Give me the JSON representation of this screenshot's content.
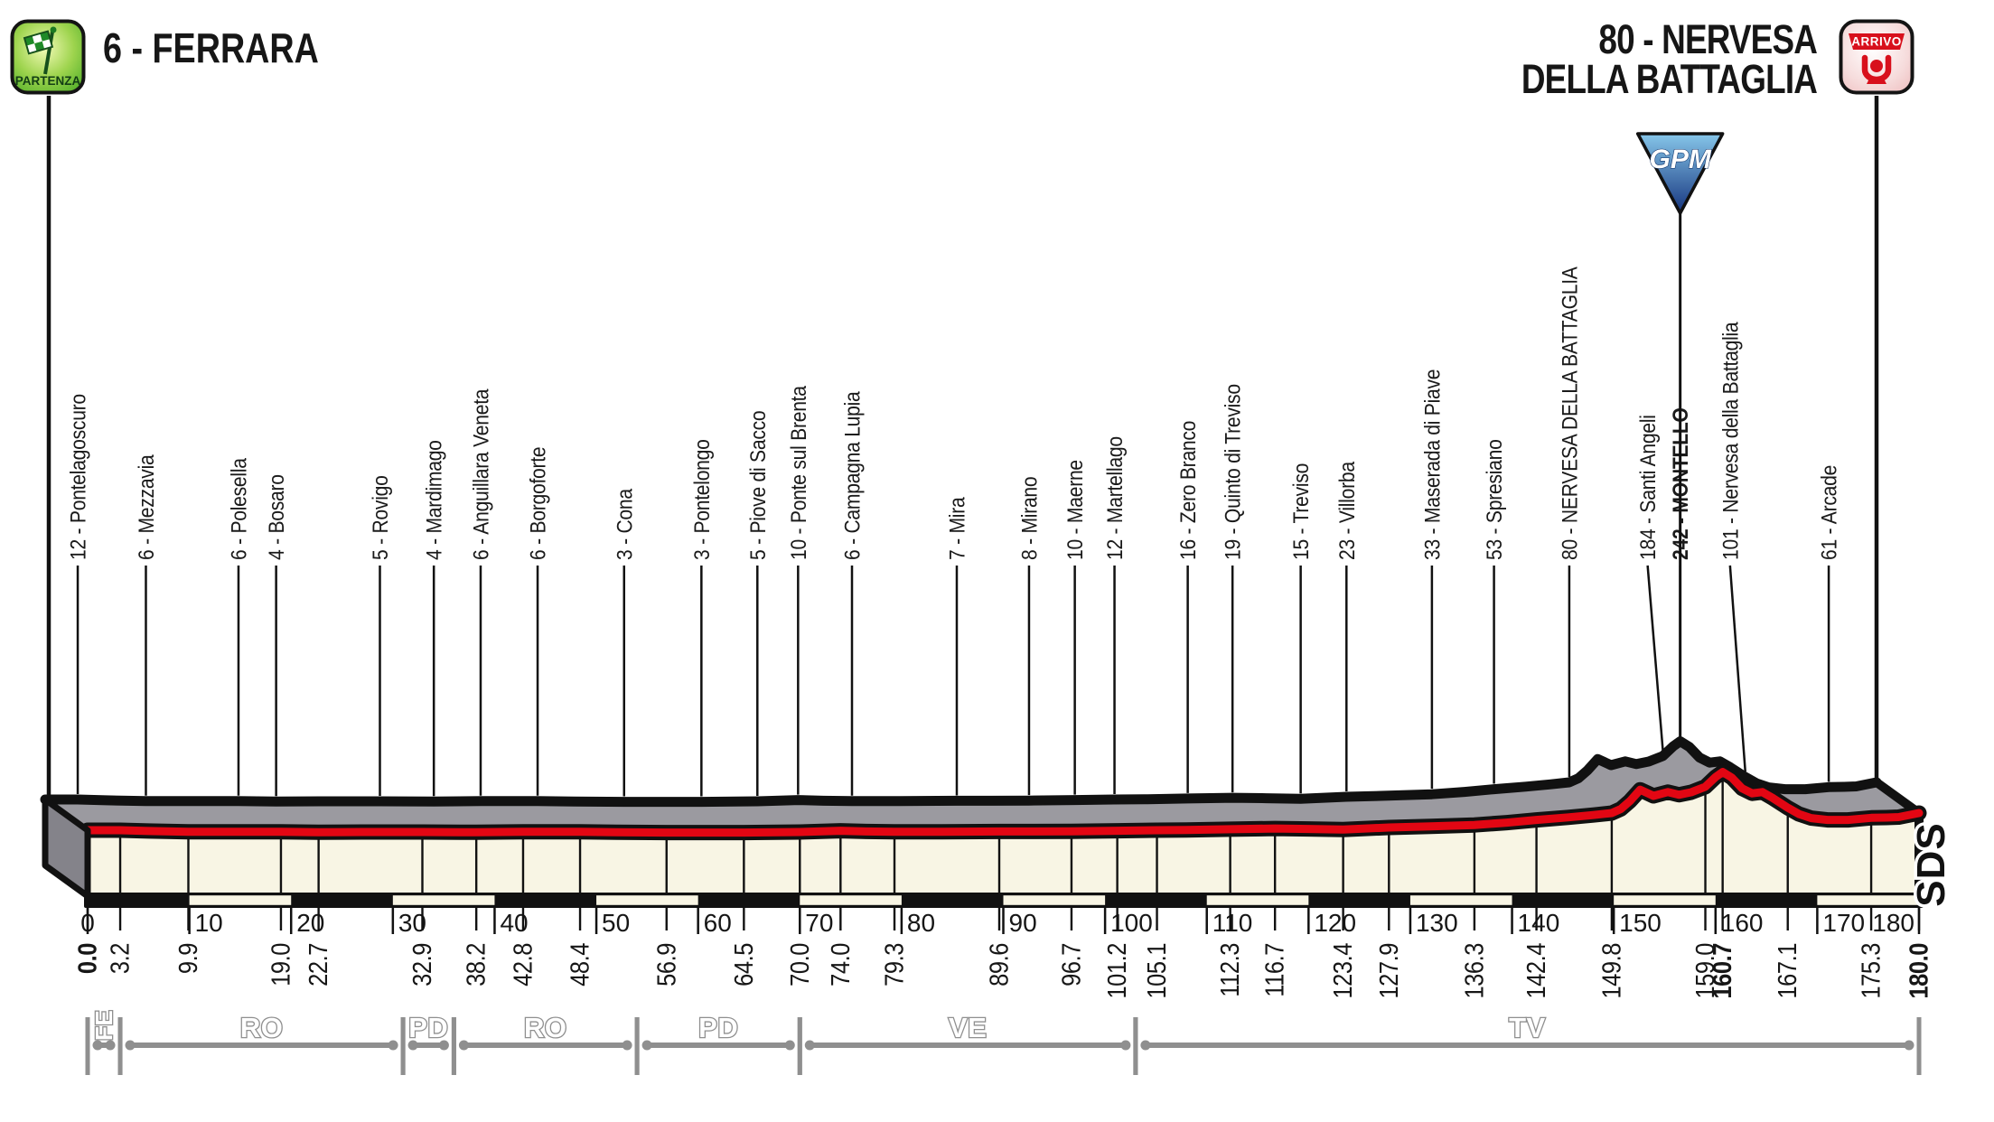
{
  "stage": {
    "start_title": "6 - FERRARA",
    "finish_title_line1": "80 - NERVESA",
    "finish_title_line2": "DELLA BATTAGLIA",
    "start_badge_label": "PARTENZA",
    "finish_badge_label": "ARRIVO",
    "gpm_badge_label": "GPM",
    "watermark": "SDS"
  },
  "colors": {
    "ink": "#111111",
    "red_line": "#e20613",
    "cream": "#f8f5e4",
    "top_gray": "#9b9aa0",
    "cap_gray": "#84838a",
    "province_gray": "#8f8f8f",
    "gpm_blue_light": "#86c6e9",
    "gpm_blue_dark": "#16357f",
    "start_green_light": "#eff9b2",
    "start_green_dark": "#54b02a",
    "finish_red": "#d8101c",
    "finish_pink": "#f3c6c4"
  },
  "chart_data": {
    "type": "area",
    "title": "Stage altimetry: 6 - Ferrara to 80 - Nervesa della Battaglia",
    "x_unit": "km",
    "y_unit": "m",
    "xlim": [
      0,
      180
    ],
    "x_major_ticks": [
      0,
      10,
      20,
      30,
      40,
      50,
      60,
      70,
      80,
      90,
      100,
      110,
      120,
      130,
      140,
      150,
      160,
      170,
      180
    ],
    "distance_bar_band_km": 10,
    "start": {
      "km": 0.0,
      "km_label": "0.0",
      "elevation": 12
    },
    "finish": {
      "km": 180.0,
      "km_label": "180.0",
      "elevation": 80
    },
    "gpm": {
      "km": 160.7,
      "name": "MONTELLO",
      "elevation": 242
    },
    "waypoints": [
      {
        "km": 3.2,
        "elevation": 12,
        "name": "Pontelagoscuro"
      },
      {
        "km": 9.9,
        "elevation": 6,
        "name": "Mezzavia"
      },
      {
        "km": 19.0,
        "elevation": 6,
        "name": "Polesella"
      },
      {
        "km": 22.7,
        "elevation": 4,
        "name": "Bosaro"
      },
      {
        "km": 32.9,
        "elevation": 5,
        "name": "Rovigo"
      },
      {
        "km": 38.2,
        "elevation": 4,
        "name": "Mardimago"
      },
      {
        "km": 42.8,
        "elevation": 6,
        "name": "Anguillara Veneta"
      },
      {
        "km": 48.4,
        "elevation": 6,
        "name": "Borgoforte"
      },
      {
        "km": 56.9,
        "elevation": 3,
        "name": "Cona"
      },
      {
        "km": 64.5,
        "elevation": 3,
        "name": "Pontelongo"
      },
      {
        "km": 70.0,
        "elevation": 5,
        "name": "Piove di Sacco"
      },
      {
        "km": 74.0,
        "elevation": 10,
        "name": "Ponte sul Brenta"
      },
      {
        "km": 79.3,
        "elevation": 6,
        "name": "Campagna Lupia"
      },
      {
        "km": 89.6,
        "elevation": 7,
        "name": "Mira"
      },
      {
        "km": 96.7,
        "elevation": 8,
        "name": "Mirano"
      },
      {
        "km": 101.2,
        "elevation": 10,
        "name": "Maerne"
      },
      {
        "km": 105.1,
        "elevation": 12,
        "name": "Martellago"
      },
      {
        "km": 112.3,
        "elevation": 16,
        "name": "Zero Branco"
      },
      {
        "km": 116.7,
        "elevation": 19,
        "name": "Quinto di Treviso"
      },
      {
        "km": 123.4,
        "elevation": 15,
        "name": "Treviso"
      },
      {
        "km": 127.9,
        "elevation": 23,
        "name": "Villorba"
      },
      {
        "km": 136.3,
        "elevation": 33,
        "name": "Maserada di Piave"
      },
      {
        "km": 142.4,
        "elevation": 53,
        "name": "Spresiano"
      },
      {
        "km": 149.8,
        "elevation": 80,
        "name": "NERVESA DELLA BATTAGLIA"
      },
      {
        "km": 159.0,
        "elevation": 184,
        "name": "Santi Angeli",
        "label_km": 157.5
      },
      {
        "km": 160.7,
        "elevation": 242,
        "name": "MONTELLO",
        "emphasis": true
      },
      {
        "km": 167.1,
        "elevation": 101,
        "name": "Nervesa della Battaglia",
        "label_km": 165.6
      },
      {
        "km": 175.3,
        "elevation": 61,
        "name": "Arcade"
      }
    ],
    "profile": [
      [
        0,
        12
      ],
      [
        3.2,
        12
      ],
      [
        6,
        9
      ],
      [
        9.9,
        6
      ],
      [
        14,
        6
      ],
      [
        19,
        6
      ],
      [
        22.7,
        4
      ],
      [
        27,
        5
      ],
      [
        32.9,
        5
      ],
      [
        38.2,
        4
      ],
      [
        42.8,
        6
      ],
      [
        48.4,
        6
      ],
      [
        52,
        4
      ],
      [
        56.9,
        3
      ],
      [
        60,
        3
      ],
      [
        64.5,
        3
      ],
      [
        70,
        5
      ],
      [
        74,
        10
      ],
      [
        76.5,
        7
      ],
      [
        79.3,
        6
      ],
      [
        84,
        6
      ],
      [
        89.6,
        7
      ],
      [
        93,
        7
      ],
      [
        96.7,
        8
      ],
      [
        101.2,
        10
      ],
      [
        105.1,
        12
      ],
      [
        108,
        13
      ],
      [
        112.3,
        16
      ],
      [
        116.7,
        19
      ],
      [
        120,
        17
      ],
      [
        123.4,
        15
      ],
      [
        127.9,
        23
      ],
      [
        132,
        27
      ],
      [
        136.3,
        33
      ],
      [
        139.5,
        42
      ],
      [
        142.4,
        53
      ],
      [
        145.5,
        63
      ],
      [
        148,
        72
      ],
      [
        149.8,
        80
      ],
      [
        150.7,
        96
      ],
      [
        151.6,
        128
      ],
      [
        152.6,
        172
      ],
      [
        153.9,
        148
      ],
      [
        155.3,
        163
      ],
      [
        156.4,
        152
      ],
      [
        157.6,
        162
      ],
      [
        159.0,
        184
      ],
      [
        160.0,
        222
      ],
      [
        160.7,
        242
      ],
      [
        161.6,
        220
      ],
      [
        162.6,
        178
      ],
      [
        163.6,
        158
      ],
      [
        164.6,
        163
      ],
      [
        165.6,
        140
      ],
      [
        167.1,
        101
      ],
      [
        168.2,
        76
      ],
      [
        169.4,
        60
      ],
      [
        171,
        53
      ],
      [
        173,
        53
      ],
      [
        175.3,
        61
      ],
      [
        176.8,
        62
      ],
      [
        178,
        64
      ],
      [
        180,
        80
      ]
    ],
    "provinces": [
      {
        "label": "FE",
        "from": 0,
        "to": 3.2,
        "vertical": true
      },
      {
        "label": "RO",
        "from": 3.2,
        "to": 31
      },
      {
        "label": "PD",
        "from": 31,
        "to": 36
      },
      {
        "label": "RO",
        "from": 36,
        "to": 54
      },
      {
        "label": "PD",
        "from": 54,
        "to": 70
      },
      {
        "label": "VE",
        "from": 70,
        "to": 103
      },
      {
        "label": "TV",
        "from": 103,
        "to": 180
      }
    ]
  }
}
